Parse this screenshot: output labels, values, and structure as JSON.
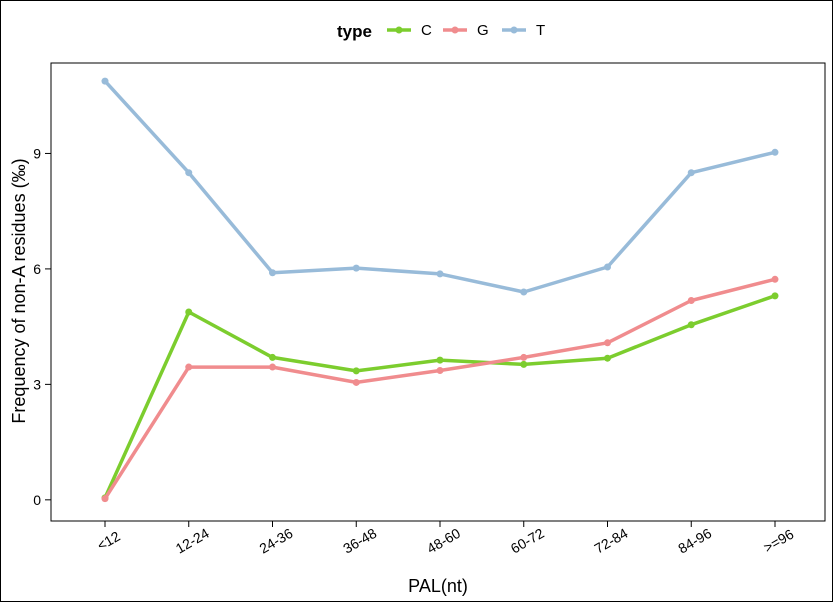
{
  "chart_data": {
    "type": "line",
    "xlabel": "PAL(nt)",
    "ylabel": "Frequency of non-A residues (‰)",
    "categories": [
      "<12",
      "12-24",
      "24-36",
      "36-48",
      "48-60",
      "60-72",
      "72-84",
      "84-96",
      ">=96"
    ],
    "ylim": [
      -0.55,
      11.35
    ],
    "yticks": [
      0,
      3,
      6,
      9
    ],
    "grid": false,
    "legend": {
      "title": "type",
      "placement": "top",
      "entries": [
        "C",
        "G",
        "T"
      ]
    },
    "series": [
      {
        "name": "C",
        "color": "#7ccd2e",
        "values": [
          0.05,
          4.88,
          3.7,
          3.35,
          3.63,
          3.52,
          3.68,
          4.55,
          5.3
        ]
      },
      {
        "name": "G",
        "color": "#f08c8e",
        "values": [
          0.03,
          3.45,
          3.45,
          3.05,
          3.36,
          3.7,
          4.08,
          5.18,
          5.73
        ]
      },
      {
        "name": "T",
        "color": "#98bbd9",
        "values": [
          10.88,
          8.5,
          5.9,
          6.02,
          5.87,
          5.4,
          6.05,
          8.5,
          9.03
        ]
      }
    ]
  }
}
